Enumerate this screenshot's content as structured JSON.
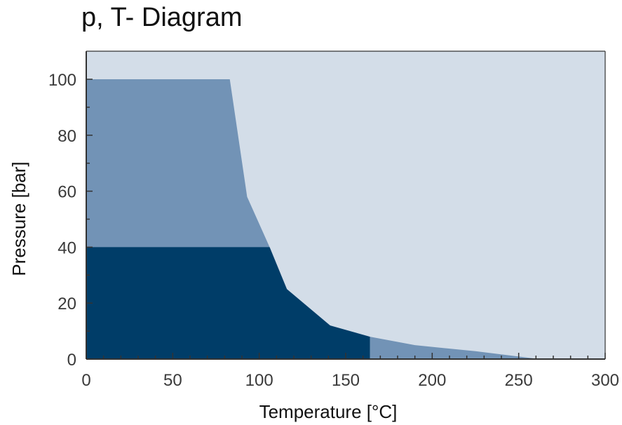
{
  "chart_data": {
    "type": "area",
    "title": "p, T- Diagram",
    "xlabel": "Temperature [°C]",
    "ylabel": "Pressure [bar]",
    "xlim": [
      0,
      300
    ],
    "ylim": [
      0,
      110
    ],
    "xticks": [
      0,
      50,
      100,
      150,
      200,
      250,
      300
    ],
    "yticks": [
      0,
      20,
      40,
      60,
      80,
      100
    ],
    "xticklabels": [
      "0",
      "50",
      "100",
      "150",
      "200",
      "250",
      "300"
    ],
    "yticklabels": [
      "0",
      "20",
      "40",
      "60",
      "80",
      "100"
    ],
    "grid": false,
    "background_color": "#d3dde8",
    "series": [
      {
        "color": "#7293b6",
        "points": [
          [
            0,
            0
          ],
          [
            0,
            100
          ],
          [
            83,
            100
          ],
          [
            93,
            58
          ],
          [
            106,
            40
          ],
          [
            116,
            25
          ],
          [
            141,
            12
          ],
          [
            164,
            8
          ],
          [
            190,
            5
          ],
          [
            225,
            2.8
          ],
          [
            262,
            0
          ]
        ]
      },
      {
        "color": "#003d68",
        "points": [
          [
            0,
            0
          ],
          [
            0,
            40
          ],
          [
            106,
            40
          ],
          [
            116,
            25
          ],
          [
            141,
            12
          ],
          [
            164,
            8
          ],
          [
            164,
            0
          ]
        ]
      }
    ]
  }
}
